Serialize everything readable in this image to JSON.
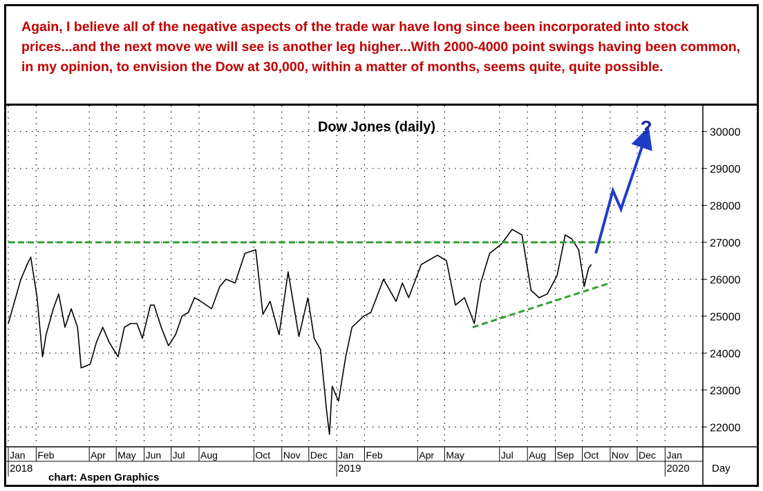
{
  "comment": {
    "text": "Again, I believe all of the negative aspects of the trade war have long since been incorporated into stock prices...and the next move we will see is another leg higher...With 2000-4000 point swings having been common, in my opinion, to envision the Dow at 30,000, within a matter of months, seems quite, quite possible."
  },
  "chart_data": {
    "type": "line",
    "title": "Dow Jones (daily)",
    "x_unit_label": "Day",
    "credit": "chart: Aspen Graphics",
    "annotation": "?",
    "y_ticks": [
      22000,
      23000,
      24000,
      25000,
      26000,
      27000,
      28000,
      29000,
      30000
    ],
    "ylim": [
      21500,
      30700
    ],
    "xlim": [
      "2018-01-01",
      "2020-02-12"
    ],
    "grid": true,
    "month_labels": [
      {
        "label": "Jan",
        "date": "2018-01-01"
      },
      {
        "label": "Feb",
        "date": "2018-02-01"
      },
      {
        "label": "Apr",
        "date": "2018-04-01"
      },
      {
        "label": "May",
        "date": "2018-05-01"
      },
      {
        "label": "Jun",
        "date": "2018-06-01"
      },
      {
        "label": "Jul",
        "date": "2018-07-01"
      },
      {
        "label": "Aug",
        "date": "2018-08-01"
      },
      {
        "label": "Oct",
        "date": "2018-10-01"
      },
      {
        "label": "Nov",
        "date": "2018-11-01"
      },
      {
        "label": "Dec",
        "date": "2018-12-01"
      },
      {
        "label": "Jan",
        "date": "2019-01-01"
      },
      {
        "label": "Feb",
        "date": "2019-02-01"
      },
      {
        "label": "Apr",
        "date": "2019-04-01"
      },
      {
        "label": "May",
        "date": "2019-05-01"
      },
      {
        "label": "Jul",
        "date": "2019-07-01"
      },
      {
        "label": "Aug",
        "date": "2019-08-01"
      },
      {
        "label": "Sep",
        "date": "2019-09-01"
      },
      {
        "label": "Oct",
        "date": "2019-10-01"
      },
      {
        "label": "Nov",
        "date": "2019-11-01"
      },
      {
        "label": "Dec",
        "date": "2019-12-01"
      },
      {
        "label": "Jan",
        "date": "2020-01-01"
      }
    ],
    "year_labels": [
      {
        "label": "2018",
        "date": "2018-01-01"
      },
      {
        "label": "2019",
        "date": "2019-01-01"
      },
      {
        "label": "2020",
        "date": "2020-01-01"
      }
    ],
    "series": [
      {
        "type": "line",
        "color": "#000000",
        "points": [
          [
            "2018-01-01",
            24800
          ],
          [
            "2018-01-08",
            25400
          ],
          [
            "2018-01-15",
            26000
          ],
          [
            "2018-01-22",
            26400
          ],
          [
            "2018-01-26",
            26600
          ],
          [
            "2018-02-02",
            25500
          ],
          [
            "2018-02-08",
            23900
          ],
          [
            "2018-02-12",
            24500
          ],
          [
            "2018-02-20",
            25200
          ],
          [
            "2018-02-26",
            25600
          ],
          [
            "2018-03-05",
            24700
          ],
          [
            "2018-03-12",
            25200
          ],
          [
            "2018-03-19",
            24700
          ],
          [
            "2018-03-23",
            23600
          ],
          [
            "2018-04-02",
            23700
          ],
          [
            "2018-04-09",
            24300
          ],
          [
            "2018-04-16",
            24700
          ],
          [
            "2018-04-23",
            24300
          ],
          [
            "2018-05-03",
            23900
          ],
          [
            "2018-05-10",
            24700
          ],
          [
            "2018-05-17",
            24800
          ],
          [
            "2018-05-24",
            24800
          ],
          [
            "2018-05-30",
            24400
          ],
          [
            "2018-06-08",
            25300
          ],
          [
            "2018-06-12",
            25300
          ],
          [
            "2018-06-20",
            24700
          ],
          [
            "2018-06-28",
            24200
          ],
          [
            "2018-07-06",
            24500
          ],
          [
            "2018-07-13",
            25000
          ],
          [
            "2018-07-20",
            25100
          ],
          [
            "2018-07-27",
            25500
          ],
          [
            "2018-08-03",
            25400
          ],
          [
            "2018-08-15",
            25200
          ],
          [
            "2018-08-24",
            25800
          ],
          [
            "2018-08-31",
            26000
          ],
          [
            "2018-09-10",
            25900
          ],
          [
            "2018-09-21",
            26700
          ],
          [
            "2018-10-03",
            26800
          ],
          [
            "2018-10-11",
            25050
          ],
          [
            "2018-10-19",
            25400
          ],
          [
            "2018-10-29",
            24500
          ],
          [
            "2018-11-08",
            26200
          ],
          [
            "2018-11-20",
            24450
          ],
          [
            "2018-11-30",
            25500
          ],
          [
            "2018-12-07",
            24400
          ],
          [
            "2018-12-14",
            24100
          ],
          [
            "2018-12-21",
            22400
          ],
          [
            "2018-12-24",
            21800
          ],
          [
            "2018-12-27",
            23100
          ],
          [
            "2019-01-03",
            22700
          ],
          [
            "2019-01-11",
            23900
          ],
          [
            "2019-01-18",
            24700
          ],
          [
            "2019-01-31",
            25000
          ],
          [
            "2019-02-08",
            25100
          ],
          [
            "2019-02-22",
            26000
          ],
          [
            "2019-03-08",
            25400
          ],
          [
            "2019-03-15",
            25900
          ],
          [
            "2019-03-22",
            25500
          ],
          [
            "2019-04-05",
            26400
          ],
          [
            "2019-04-23",
            26650
          ],
          [
            "2019-05-03",
            26500
          ],
          [
            "2019-05-13",
            25300
          ],
          [
            "2019-05-23",
            25500
          ],
          [
            "2019-06-03",
            24800
          ],
          [
            "2019-06-10",
            25900
          ],
          [
            "2019-06-20",
            26700
          ],
          [
            "2019-07-03",
            26950
          ],
          [
            "2019-07-15",
            27350
          ],
          [
            "2019-07-26",
            27200
          ],
          [
            "2019-08-05",
            25700
          ],
          [
            "2019-08-14",
            25500
          ],
          [
            "2019-08-23",
            25600
          ],
          [
            "2019-09-03",
            26100
          ],
          [
            "2019-09-12",
            27200
          ],
          [
            "2019-09-19",
            27100
          ],
          [
            "2019-09-27",
            26800
          ],
          [
            "2019-10-02",
            26000
          ],
          [
            "2019-10-03",
            25800
          ],
          [
            "2019-10-08",
            26300
          ],
          [
            "2019-10-11",
            26400
          ]
        ]
      },
      {
        "type": "line",
        "color": "#2fa02f",
        "dashed": true,
        "role": "resistance",
        "points": [
          [
            "2018-01-01",
            27000
          ],
          [
            "2019-11-01",
            27000
          ]
        ]
      },
      {
        "type": "line",
        "color": "#2fa02f",
        "dashed": true,
        "role": "support",
        "points": [
          [
            "2019-06-01",
            24700
          ],
          [
            "2019-11-01",
            25900
          ]
        ]
      },
      {
        "type": "line",
        "color": "#1f3cc8",
        "arrow": true,
        "role": "projection",
        "points": [
          [
            "2019-10-16",
            26700
          ],
          [
            "2019-11-04",
            28400
          ],
          [
            "2019-11-13",
            27900
          ],
          [
            "2019-12-10",
            29850
          ]
        ]
      }
    ]
  }
}
